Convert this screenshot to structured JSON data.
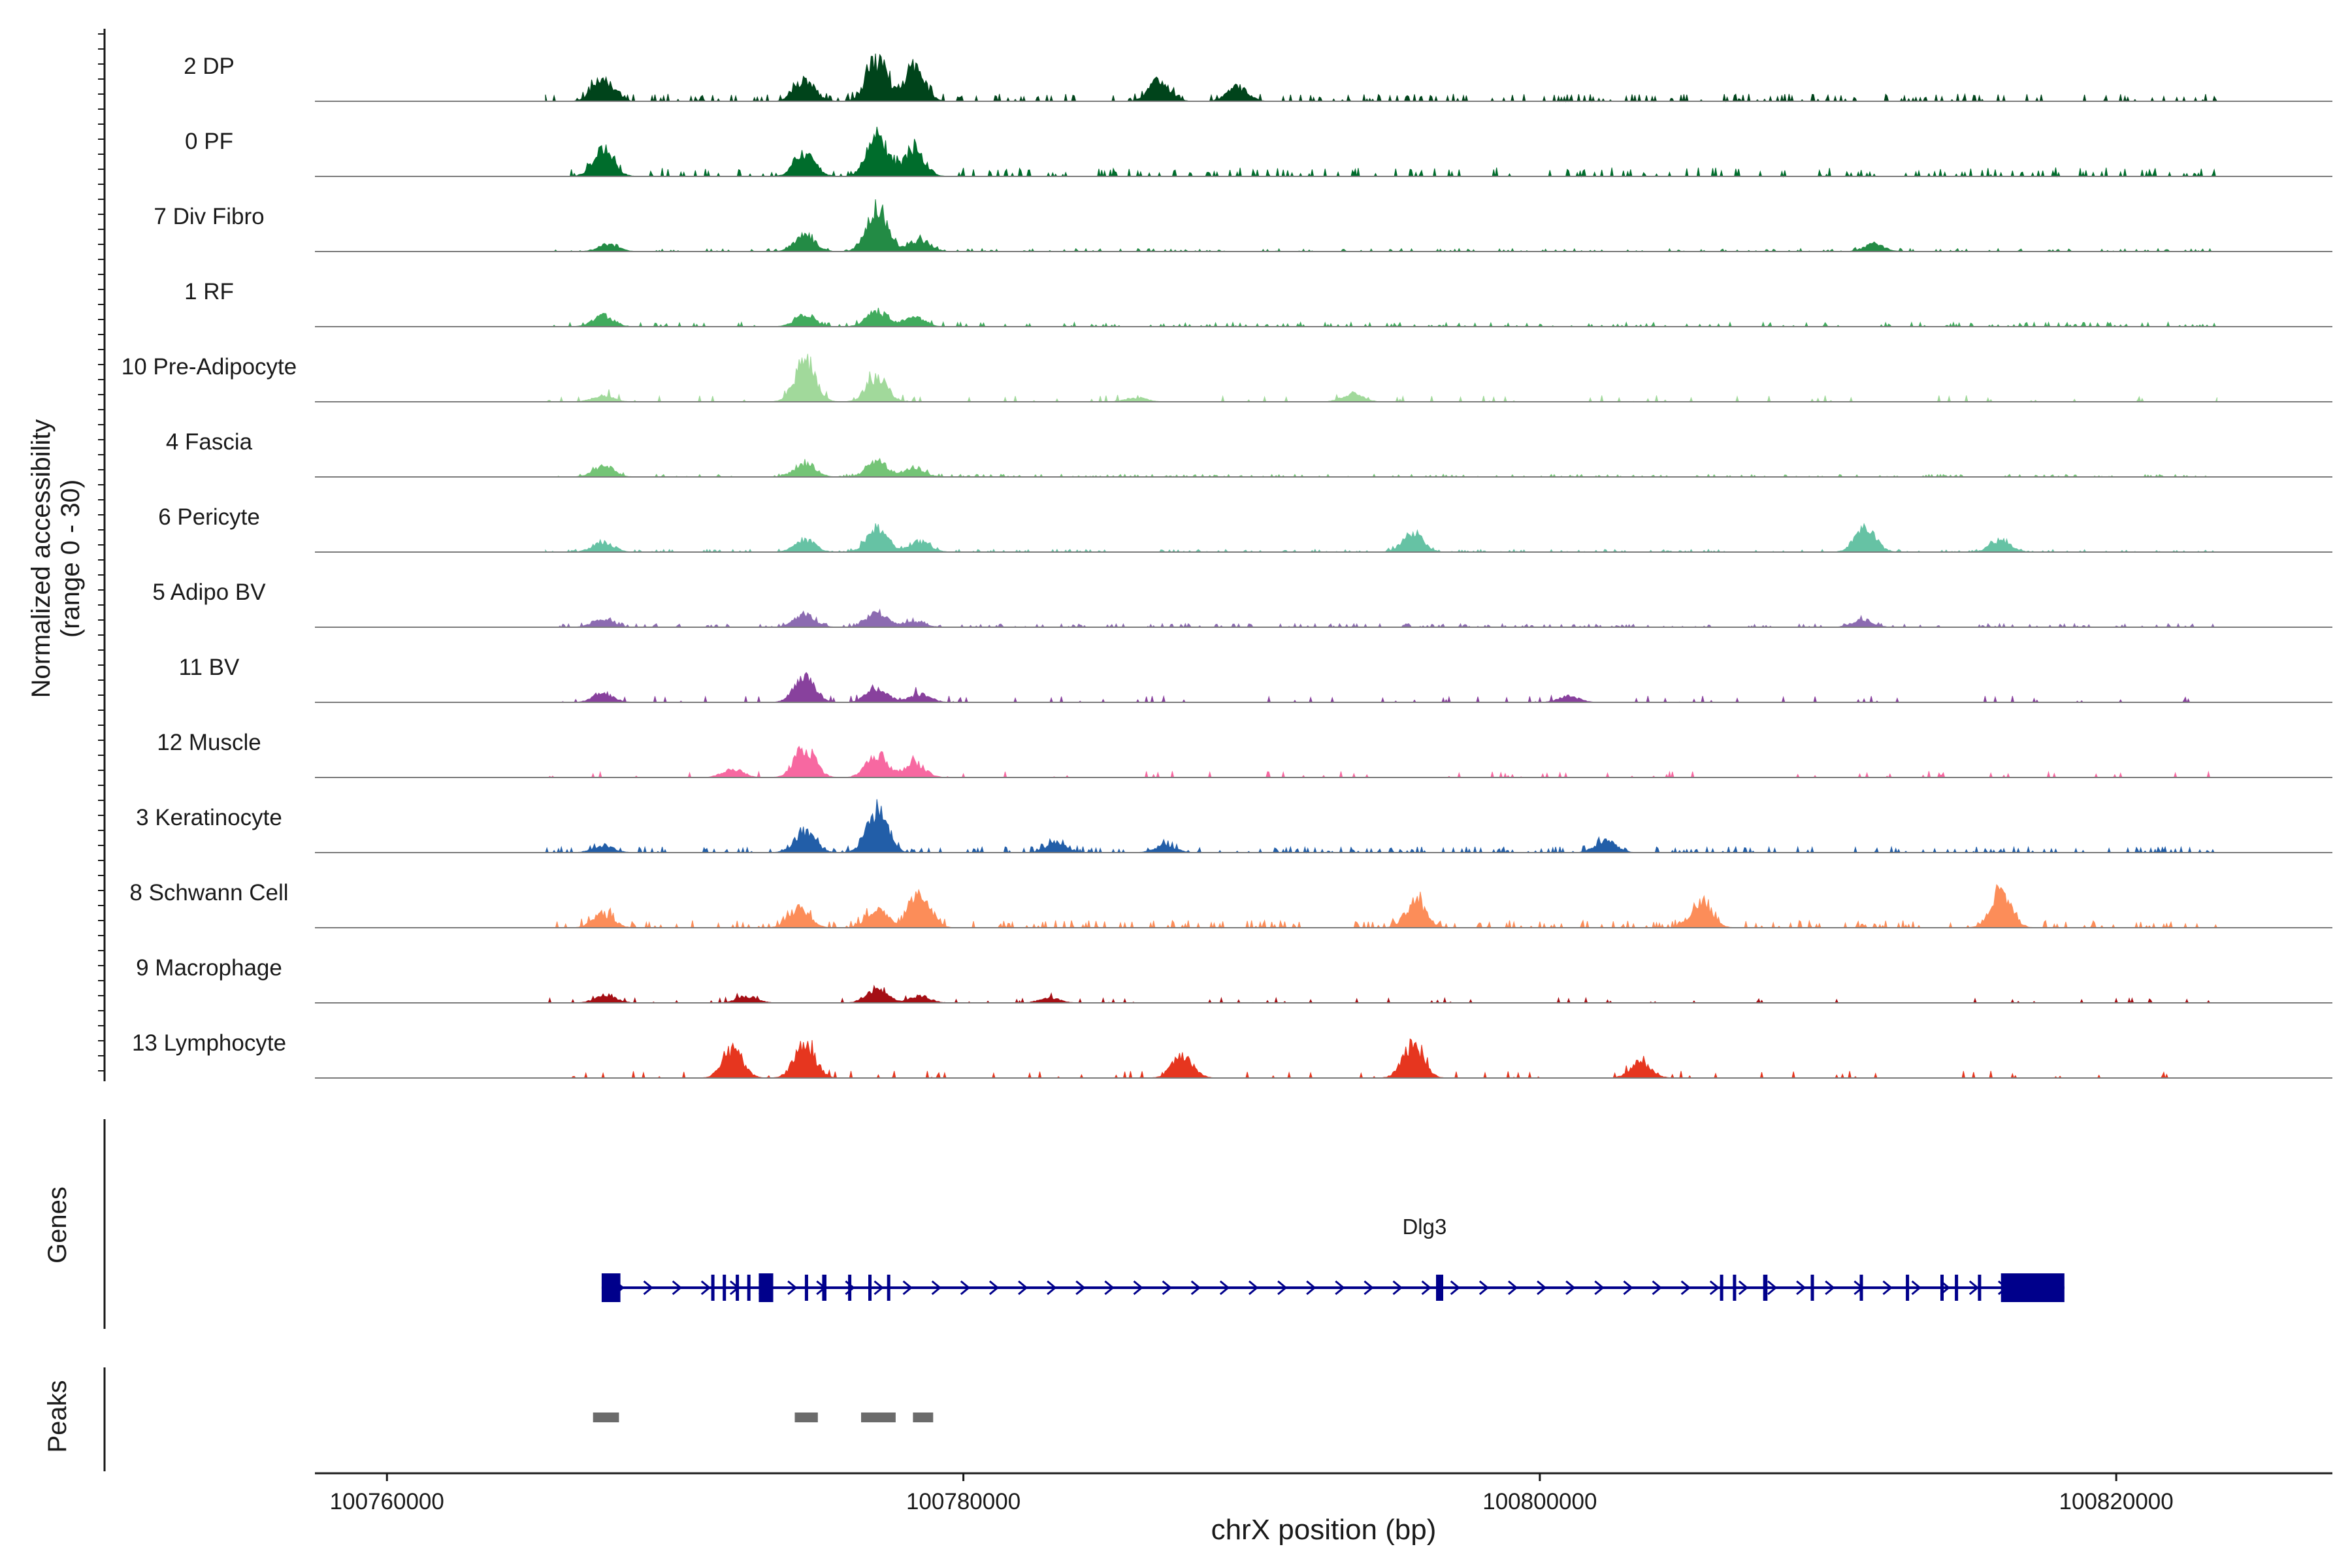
{
  "chart_data": {
    "type": "area",
    "title": "",
    "ylabel_line1": "Normalized accessibility",
    "ylabel_line2": "(range 0 - 30)",
    "xlabel": "chrX position (bp)",
    "xlim": [
      100757500,
      100827500
    ],
    "xticks": [
      100760000,
      100780000,
      100800000,
      100820000
    ],
    "xtick_labels": [
      "100760000",
      "100780000",
      "100800000",
      "100820000"
    ],
    "ylim": [
      0,
      30
    ],
    "peak_centers": [
      100767700,
      100774400,
      100777000,
      100778500
    ],
    "tracks": [
      {
        "name": "2 DP",
        "color": "#00441b",
        "scale": 1.0,
        "bg": 0.05,
        "peaks": [
          [
            100767500,
            0.5
          ],
          [
            100774500,
            0.45
          ],
          [
            100777000,
            0.85
          ],
          [
            100778300,
            0.7
          ],
          [
            100786800,
            0.45
          ],
          [
            100789500,
            0.3
          ]
        ]
      },
      {
        "name": "0 PF",
        "color": "#006d2c",
        "scale": 1.0,
        "bg": 0.06,
        "peaks": [
          [
            100767500,
            0.55
          ],
          [
            100774500,
            0.5
          ],
          [
            100777000,
            0.85
          ],
          [
            100778300,
            0.55
          ]
        ]
      },
      {
        "name": "7 Div Fibro",
        "color": "#238b45",
        "scale": 1.0,
        "bg": 0.02,
        "peaks": [
          [
            100767700,
            0.15
          ],
          [
            100774500,
            0.35
          ],
          [
            100777000,
            0.95
          ],
          [
            100778500,
            0.25
          ],
          [
            100811600,
            0.15
          ]
        ]
      },
      {
        "name": "1 RF",
        "color": "#41ab5d",
        "scale": 0.6,
        "bg": 0.05,
        "peaks": [
          [
            100767500,
            0.4
          ],
          [
            100774500,
            0.4
          ],
          [
            100777000,
            0.55
          ],
          [
            100778300,
            0.35
          ]
        ]
      },
      {
        "name": "10 Pre-Adipocyte",
        "color": "#a1d99b",
        "scale": 0.9,
        "bg": 0.0,
        "peaks": [
          [
            100767500,
            0.15
          ],
          [
            100774500,
            0.95
          ],
          [
            100777000,
            0.6
          ],
          [
            100786000,
            0.1
          ],
          [
            100793500,
            0.2
          ]
        ]
      },
      {
        "name": "4 Fascia",
        "color": "#74c476",
        "scale": 0.6,
        "bg": 0.03,
        "peaks": [
          [
            100767500,
            0.4
          ],
          [
            100774500,
            0.5
          ],
          [
            100777000,
            0.55
          ],
          [
            100778300,
            0.3
          ]
        ]
      },
      {
        "name": "6 Pericyte",
        "color": "#66c2a4",
        "scale": 0.9,
        "bg": 0.02,
        "peaks": [
          [
            100767500,
            0.25
          ],
          [
            100774500,
            0.3
          ],
          [
            100777000,
            0.55
          ],
          [
            100778500,
            0.25
          ],
          [
            100795600,
            0.45
          ],
          [
            100811300,
            0.55
          ],
          [
            100816000,
            0.3
          ]
        ]
      },
      {
        "name": "5 Adipo BV",
        "color": "#8c6bb1",
        "scale": 0.6,
        "bg": 0.04,
        "peaks": [
          [
            100767500,
            0.3
          ],
          [
            100774500,
            0.45
          ],
          [
            100777000,
            0.55
          ],
          [
            100778300,
            0.2
          ],
          [
            100811200,
            0.25
          ]
        ]
      },
      {
        "name": "11 BV",
        "color": "#88419d",
        "scale": 0.9,
        "bg": 0.0,
        "peaks": [
          [
            100767500,
            0.2
          ],
          [
            100774500,
            0.6
          ],
          [
            100777000,
            0.35
          ],
          [
            100778500,
            0.2
          ],
          [
            100801000,
            0.15
          ]
        ]
      },
      {
        "name": "12 Muscle",
        "color": "#f768a1",
        "scale": 0.9,
        "bg": 0.0,
        "peaks": [
          [
            100774500,
            0.7
          ],
          [
            100777000,
            0.55
          ],
          [
            100778300,
            0.35
          ],
          [
            100772000,
            0.2
          ]
        ]
      },
      {
        "name": "3 Keratinocyte",
        "color": "#225ea8",
        "scale": 1.0,
        "bg": 0.04,
        "peaks": [
          [
            100767500,
            0.15
          ],
          [
            100774500,
            0.45
          ],
          [
            100777000,
            0.9
          ],
          [
            100783200,
            0.2
          ],
          [
            100787000,
            0.15
          ],
          [
            100802300,
            0.25
          ]
        ]
      },
      {
        "name": "8 Schwann Cell",
        "color": "#fc8d59",
        "scale": 1.0,
        "bg": 0.05,
        "peaks": [
          [
            100767500,
            0.3
          ],
          [
            100774300,
            0.4
          ],
          [
            100777000,
            0.4
          ],
          [
            100778500,
            0.75
          ],
          [
            100795700,
            0.55
          ],
          [
            100805600,
            0.55
          ],
          [
            100816000,
            0.75
          ]
        ]
      },
      {
        "name": "9 Macrophage",
        "color": "#a50f15",
        "scale": 0.7,
        "bg": 0.0,
        "peaks": [
          [
            100767600,
            0.25
          ],
          [
            100772500,
            0.2
          ],
          [
            100777000,
            0.45
          ],
          [
            100778500,
            0.2
          ],
          [
            100783000,
            0.15
          ]
        ]
      },
      {
        "name": "13 Lymphocyte",
        "color": "#e6361f",
        "scale": 1.0,
        "bg": 0.0,
        "peaks": [
          [
            100774500,
            0.75
          ],
          [
            100772000,
            0.6
          ],
          [
            100795600,
            0.7
          ],
          [
            100787600,
            0.5
          ],
          [
            100803500,
            0.35
          ]
        ]
      }
    ],
    "genes": {
      "label": "Genes",
      "name": "Dlg3",
      "strand": "+",
      "color": "#00008b",
      "start": 100767450,
      "end": 100818200,
      "exons": [
        [
          100767450,
          100768100
        ],
        [
          100771250,
          100771350
        ],
        [
          100771650,
          100771750
        ],
        [
          100772100,
          100772200
        ],
        [
          100772500,
          100772600
        ],
        [
          100772900,
          100773400
        ],
        [
          100774500,
          100774600
        ],
        [
          100775100,
          100775250
        ],
        [
          100776000,
          100776100
        ],
        [
          100776700,
          100776800
        ],
        [
          100777350,
          100777450
        ],
        [
          100796400,
          100796650
        ],
        [
          100806250,
          100806350
        ],
        [
          100806700,
          100806800
        ],
        [
          100807750,
          100807900
        ],
        [
          100809400,
          100809500
        ],
        [
          100811100,
          100811200
        ],
        [
          100812700,
          100812800
        ],
        [
          100813900,
          100814000
        ],
        [
          100814400,
          100814500
        ],
        [
          100815200,
          100815300
        ],
        [
          100816000,
          100818200
        ]
      ]
    },
    "peaks_track": {
      "label": "Peaks",
      "color": "#6b6b6b",
      "regions": [
        [
          100767150,
          100768050
        ],
        [
          100774150,
          100774950
        ],
        [
          100776450,
          100777650
        ],
        [
          100778250,
          100778950
        ]
      ]
    }
  }
}
